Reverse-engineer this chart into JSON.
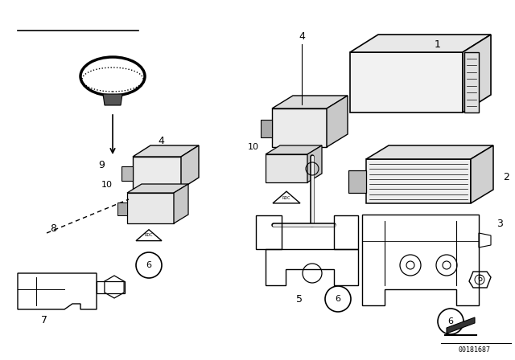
{
  "bg_color": "#ffffff",
  "line_color": "#000000",
  "fig_width": 6.4,
  "fig_height": 4.48,
  "dpi": 100,
  "watermark": "00181687"
}
